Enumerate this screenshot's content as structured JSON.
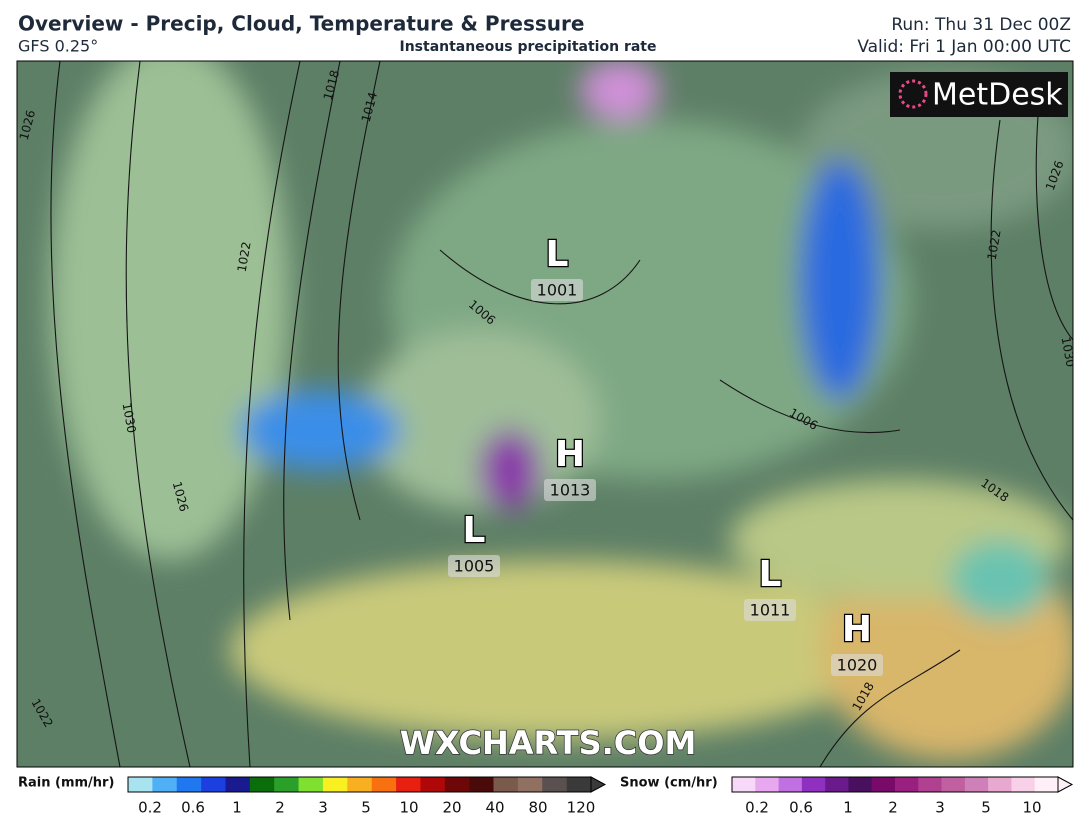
{
  "header": {
    "title": "Overview - Precip, Cloud, Temperature & Pressure",
    "model": "GFS 0.25°",
    "subtitle": "Instantaneous precipitation rate",
    "run": "Run: Thu 31 Dec 00Z",
    "valid": "Valid: Fri 1 Jan 00:00 UTC"
  },
  "map": {
    "logo": "MetDesk",
    "watermark": "WXCHARTS.COM",
    "pressure_centers": [
      {
        "symbol": "L",
        "value": "1001"
      },
      {
        "symbol": "H",
        "value": "1013"
      },
      {
        "symbol": "L",
        "value": "1005"
      },
      {
        "symbol": "L",
        "value": "1011"
      },
      {
        "symbol": "H",
        "value": "1020"
      }
    ],
    "isobar_labels": [
      "1026",
      "1018",
      "1014",
      "1022",
      "1030",
      "1026",
      "1022",
      "1006",
      "1006",
      "1018",
      "1022",
      "1026",
      "1030",
      "1018"
    ]
  },
  "legend": {
    "rain": {
      "label": "Rain (mm/hr)",
      "ticks": [
        "0.2",
        "0.6",
        "1",
        "2",
        "3",
        "5",
        "10",
        "20",
        "40",
        "80",
        "120"
      ],
      "colors": [
        "#a8e4ef",
        "#4fb0f5",
        "#1f78f0",
        "#1c3fe0",
        "#1a1a90",
        "#0a6e0a",
        "#2aa02a",
        "#80e030",
        "#f8f020",
        "#f8b020",
        "#f87010",
        "#e82010",
        "#b00808",
        "#6e0808",
        "#4a0a0a",
        "#7a5a4a",
        "#907060",
        "#5a5050",
        "#3a3a3a"
      ]
    },
    "snow": {
      "label": "Snow (cm/hr)",
      "ticks": [
        "0.2",
        "0.6",
        "1",
        "2",
        "3",
        "5",
        "10"
      ],
      "colors": [
        "#f8d8f8",
        "#e8a8f0",
        "#c070e0",
        "#9030c0",
        "#6a1a8a",
        "#4a1060",
        "#7a0a6a",
        "#9a2080",
        "#b04090",
        "#c060a0",
        "#d080b8",
        "#e8a8d0",
        "#f8d0e8",
        "#fff0f8"
      ]
    }
  }
}
